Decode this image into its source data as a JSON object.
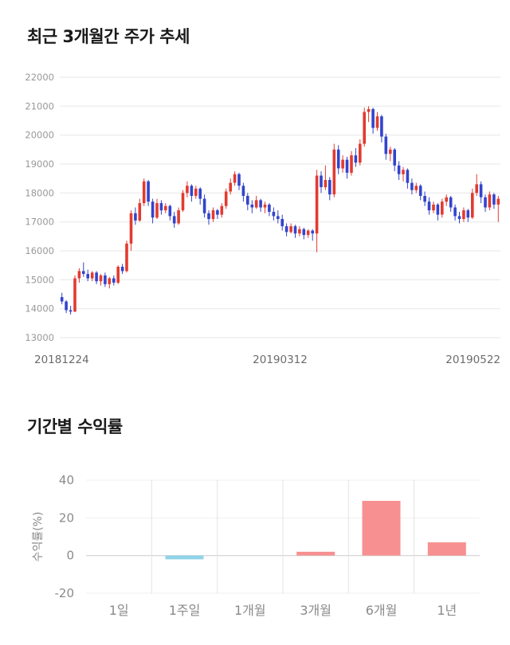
{
  "sections": {
    "price_trend": {
      "title": "최근 3개월간 주가 추세"
    },
    "returns": {
      "title": "기간별 수익률"
    }
  },
  "colors": {
    "background": "#ffffff",
    "title_text": "#1a1a1a"
  },
  "chart_data": [
    {
      "type": "candlestick",
      "title": "최근 3개월간 주가 추세",
      "ylim": [
        13000,
        22000
      ],
      "yticks": [
        13000,
        14000,
        15000,
        16000,
        17000,
        18000,
        19000,
        20000,
        21000,
        22000
      ],
      "xtick_labels": [
        "20181224",
        "20190312",
        "20190522"
      ],
      "up_color": "#e23b30",
      "down_color": "#3344cc",
      "grid_color": "#e7e7e7",
      "tick_color": "#999999",
      "xtick_color": "#6b6b6b",
      "grid": true,
      "legend": false,
      "candles_format": [
        "open",
        "high",
        "low",
        "close"
      ],
      "candles": [
        [
          14400,
          14550,
          14150,
          14250
        ],
        [
          14250,
          14300,
          13850,
          13950
        ],
        [
          13950,
          14100,
          13800,
          13900
        ],
        [
          13900,
          15150,
          13880,
          15050
        ],
        [
          15050,
          15400,
          14900,
          15300
        ],
        [
          15300,
          15600,
          15100,
          15200
        ],
        [
          15200,
          15350,
          14950,
          15050
        ],
        [
          15050,
          15300,
          14950,
          15250
        ],
        [
          15250,
          15300,
          14850,
          14950
        ],
        [
          14950,
          15200,
          14800,
          15150
        ],
        [
          15150,
          15250,
          14750,
          14850
        ],
        [
          14850,
          15100,
          14700,
          15050
        ],
        [
          15050,
          15150,
          14800,
          14900
        ],
        [
          14900,
          15500,
          14850,
          15450
        ],
        [
          15450,
          15550,
          15200,
          15300
        ],
        [
          15300,
          16350,
          15250,
          16250
        ],
        [
          16250,
          17400,
          16000,
          17300
        ],
        [
          17300,
          17500,
          16900,
          17050
        ],
        [
          17050,
          17800,
          17000,
          17650
        ],
        [
          17650,
          18500,
          17550,
          18400
        ],
        [
          18400,
          18450,
          17550,
          17700
        ],
        [
          17700,
          17800,
          16950,
          17150
        ],
        [
          17150,
          17800,
          17100,
          17650
        ],
        [
          17650,
          17750,
          17250,
          17400
        ],
        [
          17400,
          17650,
          17300,
          17550
        ],
        [
          17550,
          17600,
          17050,
          17200
        ],
        [
          17200,
          17350,
          16800,
          16950
        ],
        [
          16950,
          17500,
          16900,
          17400
        ],
        [
          17400,
          18100,
          17350,
          18000
        ],
        [
          18000,
          18400,
          17850,
          18250
        ],
        [
          18250,
          18300,
          17700,
          17900
        ],
        [
          17900,
          18250,
          17800,
          18150
        ],
        [
          18150,
          18200,
          17600,
          17800
        ],
        [
          17800,
          17950,
          17150,
          17300
        ],
        [
          17300,
          17400,
          16900,
          17100
        ],
        [
          17100,
          17500,
          17000,
          17400
        ],
        [
          17400,
          17450,
          17100,
          17250
        ],
        [
          17250,
          17650,
          17150,
          17550
        ],
        [
          17550,
          18150,
          17450,
          18050
        ],
        [
          18050,
          18500,
          17950,
          18350
        ],
        [
          18350,
          18750,
          18250,
          18650
        ],
        [
          18650,
          18700,
          18100,
          18250
        ],
        [
          18250,
          18350,
          17700,
          17900
        ],
        [
          17900,
          18000,
          17400,
          17600
        ],
        [
          17600,
          17750,
          17300,
          17500
        ],
        [
          17500,
          17900,
          17450,
          17750
        ],
        [
          17750,
          17800,
          17350,
          17500
        ],
        [
          17500,
          17700,
          17300,
          17600
        ],
        [
          17600,
          17650,
          17200,
          17350
        ],
        [
          17350,
          17500,
          17050,
          17200
        ],
        [
          17200,
          17400,
          16950,
          17100
        ],
        [
          17100,
          17250,
          16700,
          16850
        ],
        [
          16850,
          16950,
          16500,
          16650
        ],
        [
          16650,
          16950,
          16600,
          16850
        ],
        [
          16850,
          16900,
          16450,
          16600
        ],
        [
          16600,
          16850,
          16500,
          16750
        ],
        [
          16750,
          16800,
          16400,
          16550
        ],
        [
          16550,
          16750,
          16450,
          16700
        ],
        [
          16700,
          16750,
          16350,
          16600
        ],
        [
          16600,
          18800,
          15950,
          18600
        ],
        [
          18600,
          18750,
          18000,
          18200
        ],
        [
          18200,
          18950,
          18100,
          18450
        ],
        [
          18450,
          18550,
          17750,
          17950
        ],
        [
          17950,
          19700,
          17850,
          19500
        ],
        [
          19500,
          19650,
          18650,
          18850
        ],
        [
          18850,
          19300,
          18700,
          19150
        ],
        [
          19150,
          19250,
          18500,
          18700
        ],
        [
          18700,
          19450,
          18600,
          19300
        ],
        [
          19300,
          19550,
          18900,
          19050
        ],
        [
          19050,
          19850,
          18950,
          19700
        ],
        [
          19700,
          20950,
          19600,
          20800
        ],
        [
          20800,
          21000,
          20450,
          20900
        ],
        [
          20900,
          20950,
          20050,
          20250
        ],
        [
          20250,
          20800,
          20150,
          20650
        ],
        [
          20650,
          20700,
          19750,
          19950
        ],
        [
          19950,
          20050,
          19150,
          19350
        ],
        [
          19350,
          19600,
          19100,
          19500
        ],
        [
          19500,
          19550,
          18750,
          18950
        ],
        [
          18950,
          19100,
          18450,
          18650
        ],
        [
          18650,
          18900,
          18400,
          18800
        ],
        [
          18800,
          18850,
          18150,
          18350
        ],
        [
          18350,
          18500,
          17950,
          18100
        ],
        [
          18100,
          18350,
          18000,
          18250
        ],
        [
          18250,
          18300,
          17750,
          17900
        ],
        [
          17900,
          18050,
          17550,
          17700
        ],
        [
          17700,
          17850,
          17250,
          17400
        ],
        [
          17400,
          17700,
          17300,
          17600
        ],
        [
          17600,
          17650,
          17050,
          17250
        ],
        [
          17250,
          17800,
          17150,
          17700
        ],
        [
          17700,
          17950,
          17550,
          17850
        ],
        [
          17850,
          17900,
          17350,
          17500
        ],
        [
          17500,
          17600,
          17050,
          17200
        ],
        [
          17200,
          17350,
          16950,
          17100
        ],
        [
          17100,
          17500,
          17000,
          17400
        ],
        [
          17400,
          17450,
          17000,
          17150
        ],
        [
          17150,
          18150,
          17100,
          18000
        ],
        [
          18000,
          18650,
          17900,
          18300
        ],
        [
          18300,
          18400,
          17650,
          17850
        ],
        [
          17850,
          17950,
          17350,
          17500
        ],
        [
          17500,
          18050,
          17400,
          17950
        ],
        [
          17950,
          18000,
          17450,
          17600
        ],
        [
          17600,
          17900,
          17000,
          17800
        ]
      ]
    },
    {
      "type": "bar",
      "title": "기간별 수익률",
      "categories": [
        "1일",
        "1주일",
        "1개월",
        "3개월",
        "6개월",
        "1년"
      ],
      "values": [
        0,
        -2,
        0,
        2,
        29,
        7
      ],
      "ylabel": "수익률(%)",
      "yticks": [
        40,
        20,
        0,
        -20
      ],
      "ylim": [
        -20,
        40
      ],
      "positive_color": "#f79090",
      "negative_color": "#8fd3e8",
      "grid_color": "#e3e3e3",
      "zero_line_color": "#cccccc",
      "tick_color": "#8a8a8a",
      "grid": true,
      "legend": false
    }
  ]
}
